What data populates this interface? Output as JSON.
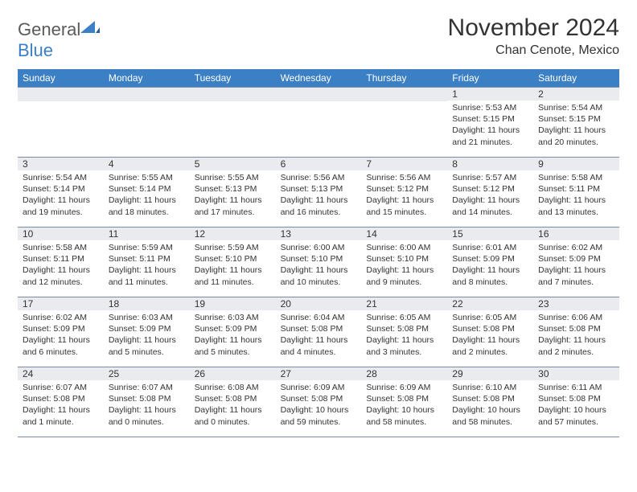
{
  "brand": {
    "part1": "General",
    "part2": "Blue"
  },
  "title": "November 2024",
  "location": "Chan Cenote, Mexico",
  "colors": {
    "header_bg": "#3b7fc4",
    "header_text": "#ffffff",
    "daynum_bg": "#e9ebee",
    "border": "#7a8aa0",
    "text": "#333333",
    "logo_gray": "#5a5a5a",
    "logo_blue": "#3b7fc4"
  },
  "dow": [
    "Sunday",
    "Monday",
    "Tuesday",
    "Wednesday",
    "Thursday",
    "Friday",
    "Saturday"
  ],
  "weeks": [
    [
      {
        "n": "",
        "sr": "",
        "ss": "",
        "dl": ""
      },
      {
        "n": "",
        "sr": "",
        "ss": "",
        "dl": ""
      },
      {
        "n": "",
        "sr": "",
        "ss": "",
        "dl": ""
      },
      {
        "n": "",
        "sr": "",
        "ss": "",
        "dl": ""
      },
      {
        "n": "",
        "sr": "",
        "ss": "",
        "dl": ""
      },
      {
        "n": "1",
        "sr": "Sunrise: 5:53 AM",
        "ss": "Sunset: 5:15 PM",
        "dl": "Daylight: 11 hours and 21 minutes."
      },
      {
        "n": "2",
        "sr": "Sunrise: 5:54 AM",
        "ss": "Sunset: 5:15 PM",
        "dl": "Daylight: 11 hours and 20 minutes."
      }
    ],
    [
      {
        "n": "3",
        "sr": "Sunrise: 5:54 AM",
        "ss": "Sunset: 5:14 PM",
        "dl": "Daylight: 11 hours and 19 minutes."
      },
      {
        "n": "4",
        "sr": "Sunrise: 5:55 AM",
        "ss": "Sunset: 5:14 PM",
        "dl": "Daylight: 11 hours and 18 minutes."
      },
      {
        "n": "5",
        "sr": "Sunrise: 5:55 AM",
        "ss": "Sunset: 5:13 PM",
        "dl": "Daylight: 11 hours and 17 minutes."
      },
      {
        "n": "6",
        "sr": "Sunrise: 5:56 AM",
        "ss": "Sunset: 5:13 PM",
        "dl": "Daylight: 11 hours and 16 minutes."
      },
      {
        "n": "7",
        "sr": "Sunrise: 5:56 AM",
        "ss": "Sunset: 5:12 PM",
        "dl": "Daylight: 11 hours and 15 minutes."
      },
      {
        "n": "8",
        "sr": "Sunrise: 5:57 AM",
        "ss": "Sunset: 5:12 PM",
        "dl": "Daylight: 11 hours and 14 minutes."
      },
      {
        "n": "9",
        "sr": "Sunrise: 5:58 AM",
        "ss": "Sunset: 5:11 PM",
        "dl": "Daylight: 11 hours and 13 minutes."
      }
    ],
    [
      {
        "n": "10",
        "sr": "Sunrise: 5:58 AM",
        "ss": "Sunset: 5:11 PM",
        "dl": "Daylight: 11 hours and 12 minutes."
      },
      {
        "n": "11",
        "sr": "Sunrise: 5:59 AM",
        "ss": "Sunset: 5:11 PM",
        "dl": "Daylight: 11 hours and 11 minutes."
      },
      {
        "n": "12",
        "sr": "Sunrise: 5:59 AM",
        "ss": "Sunset: 5:10 PM",
        "dl": "Daylight: 11 hours and 11 minutes."
      },
      {
        "n": "13",
        "sr": "Sunrise: 6:00 AM",
        "ss": "Sunset: 5:10 PM",
        "dl": "Daylight: 11 hours and 10 minutes."
      },
      {
        "n": "14",
        "sr": "Sunrise: 6:00 AM",
        "ss": "Sunset: 5:10 PM",
        "dl": "Daylight: 11 hours and 9 minutes."
      },
      {
        "n": "15",
        "sr": "Sunrise: 6:01 AM",
        "ss": "Sunset: 5:09 PM",
        "dl": "Daylight: 11 hours and 8 minutes."
      },
      {
        "n": "16",
        "sr": "Sunrise: 6:02 AM",
        "ss": "Sunset: 5:09 PM",
        "dl": "Daylight: 11 hours and 7 minutes."
      }
    ],
    [
      {
        "n": "17",
        "sr": "Sunrise: 6:02 AM",
        "ss": "Sunset: 5:09 PM",
        "dl": "Daylight: 11 hours and 6 minutes."
      },
      {
        "n": "18",
        "sr": "Sunrise: 6:03 AM",
        "ss": "Sunset: 5:09 PM",
        "dl": "Daylight: 11 hours and 5 minutes."
      },
      {
        "n": "19",
        "sr": "Sunrise: 6:03 AM",
        "ss": "Sunset: 5:09 PM",
        "dl": "Daylight: 11 hours and 5 minutes."
      },
      {
        "n": "20",
        "sr": "Sunrise: 6:04 AM",
        "ss": "Sunset: 5:08 PM",
        "dl": "Daylight: 11 hours and 4 minutes."
      },
      {
        "n": "21",
        "sr": "Sunrise: 6:05 AM",
        "ss": "Sunset: 5:08 PM",
        "dl": "Daylight: 11 hours and 3 minutes."
      },
      {
        "n": "22",
        "sr": "Sunrise: 6:05 AM",
        "ss": "Sunset: 5:08 PM",
        "dl": "Daylight: 11 hours and 2 minutes."
      },
      {
        "n": "23",
        "sr": "Sunrise: 6:06 AM",
        "ss": "Sunset: 5:08 PM",
        "dl": "Daylight: 11 hours and 2 minutes."
      }
    ],
    [
      {
        "n": "24",
        "sr": "Sunrise: 6:07 AM",
        "ss": "Sunset: 5:08 PM",
        "dl": "Daylight: 11 hours and 1 minute."
      },
      {
        "n": "25",
        "sr": "Sunrise: 6:07 AM",
        "ss": "Sunset: 5:08 PM",
        "dl": "Daylight: 11 hours and 0 minutes."
      },
      {
        "n": "26",
        "sr": "Sunrise: 6:08 AM",
        "ss": "Sunset: 5:08 PM",
        "dl": "Daylight: 11 hours and 0 minutes."
      },
      {
        "n": "27",
        "sr": "Sunrise: 6:09 AM",
        "ss": "Sunset: 5:08 PM",
        "dl": "Daylight: 10 hours and 59 minutes."
      },
      {
        "n": "28",
        "sr": "Sunrise: 6:09 AM",
        "ss": "Sunset: 5:08 PM",
        "dl": "Daylight: 10 hours and 58 minutes."
      },
      {
        "n": "29",
        "sr": "Sunrise: 6:10 AM",
        "ss": "Sunset: 5:08 PM",
        "dl": "Daylight: 10 hours and 58 minutes."
      },
      {
        "n": "30",
        "sr": "Sunrise: 6:11 AM",
        "ss": "Sunset: 5:08 PM",
        "dl": "Daylight: 10 hours and 57 minutes."
      }
    ]
  ]
}
